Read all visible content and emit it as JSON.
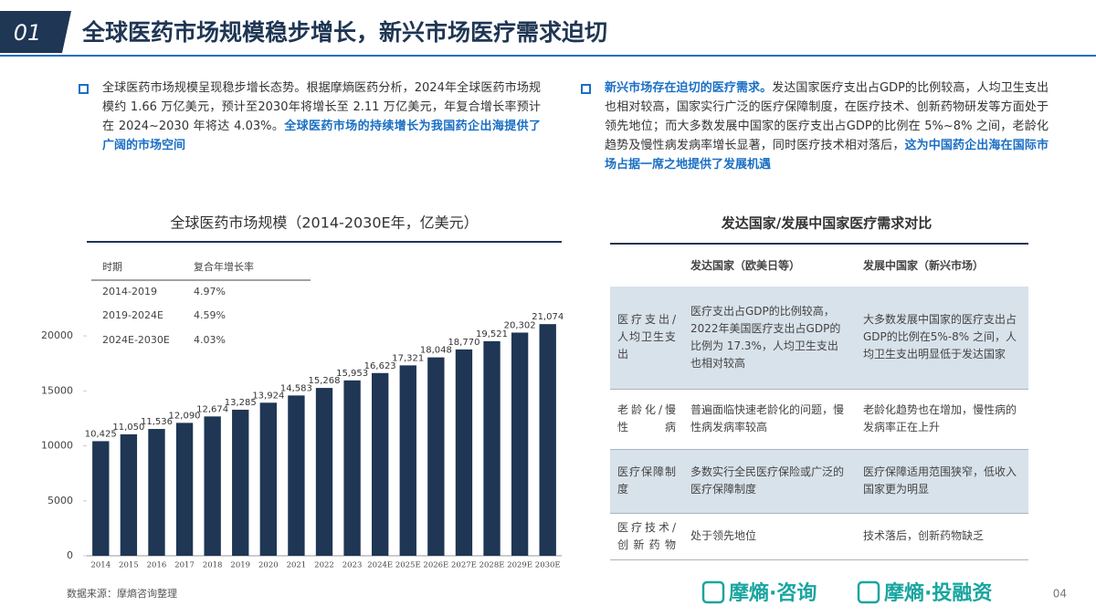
{
  "header": {
    "number": "01",
    "title": "全球医药市场规模稳步增长，新兴市场医疗需求迫切"
  },
  "bullets": [
    {
      "parts": [
        {
          "text": "全球医药市场规模呈现稳步增长态势。根据摩熵医药分析，2024年全球医药市场规模约 1.66 万亿美元，预计至2030年将增长至 2.11 万亿美元，年复合增长率预计在 2024~2030 年将达 4.03%。",
          "highlight": false
        },
        {
          "text": "全球医药市场的持续增长为我国药企出海提供了广阔的市场空间",
          "highlight": true
        }
      ]
    },
    {
      "parts": [
        {
          "text": "新兴市场存在迫切的医疗需求。",
          "highlight": true
        },
        {
          "text": "发达国家医疗支出占GDP的比例较高，人均卫生支出也相对较高，国家实行广泛的医疗保障制度，在医疗技术、创新药物研发等方面处于领先地位；而大多数发展中国家的医疗支出占GDP的比例在 5%~8% 之间，老龄化趋势及慢性病发病率增长显著，同时医疗技术相对落后，",
          "highlight": false
        },
        {
          "text": "这为中国药企出海在国际市场占据一席之地提供了发展机遇",
          "highlight": true
        }
      ]
    }
  ],
  "chart_data": {
    "type": "bar",
    "title": "全球医药市场规模（2014-2030E年，亿美元）",
    "categories": [
      "2014",
      "2015",
      "2016",
      "2017",
      "2018",
      "2019",
      "2020",
      "2021",
      "2022",
      "2023",
      "2024E",
      "2025E",
      "2026E",
      "2027E",
      "2028E",
      "2029E",
      "2030E"
    ],
    "values": [
      10425,
      11050,
      11536,
      12090,
      12674,
      13285,
      13924,
      14583,
      15268,
      15953,
      16623,
      17321,
      18048,
      18770,
      19521,
      20302,
      21074
    ],
    "value_labels": [
      "10,425",
      "11,050",
      "11,536",
      "12,090",
      "12,674",
      "13,285",
      "13,924",
      "14,583",
      "15,268",
      "15,953",
      "16,623",
      "17,321",
      "18,048",
      "18,770",
      "19,521",
      "20,302",
      "21,074"
    ],
    "color": "#1f3654",
    "ylim": [
      0,
      22000
    ],
    "yticks": [
      0,
      5000,
      10000,
      15000,
      20000
    ],
    "grid": false,
    "inset_table": {
      "header": [
        "时期",
        "复合年增长率"
      ],
      "rows": [
        [
          "2014-2019",
          "4.97%"
        ],
        [
          "2019-2024E",
          "4.59%"
        ],
        [
          "2024E-2030E",
          "4.03%"
        ]
      ]
    }
  },
  "table": {
    "title": "发达国家/发展中国家医疗需求对比",
    "header": [
      "发达国家（欧美日等）",
      "发展中国家（新兴市场）"
    ],
    "rows": [
      [
        "医疗支出/人均卫生支出",
        "医疗支出占GDP的比例较高，2022年美国医疗支出占GDP的比例为 17.3%，人均卫生支出也相对较高",
        "大多数发展中国家的医疗支出占GDP的比例在5%-8% 之间，人均卫生支出明显低于发达国家"
      ],
      [
        "老龄化/慢性病",
        "普遍面临快速老龄化的问题，慢性病发病率较高",
        "老龄化趋势也在增加，慢性病的发病率正在上升"
      ],
      [
        "医疗保障制度",
        "多数实行全民医疗保险或广泛的医疗保障制度",
        "医疗保障适用范围狭窄，低收入国家更为明显"
      ],
      [
        "医疗技术/创新药物",
        "处于领先地位",
        "技术落后，创新药物缺乏"
      ]
    ]
  },
  "footer": {
    "source": "数据来源：摩熵咨询整理",
    "logos": [
      "摩熵·咨询",
      "摩熵·投融资"
    ],
    "page": "04"
  }
}
